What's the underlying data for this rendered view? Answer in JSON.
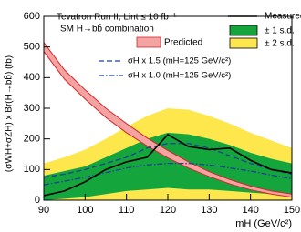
{
  "chart_data": {
    "type": "line",
    "title": "Tevatron Run II, Lint ≤ 10 fb⁻¹",
    "subtitle": "SM H→bb̄ combination",
    "xlabel": "mH (GeV/c²)",
    "ylabel": "(σWH+σZH) x Br(H→bb̄) (fb)",
    "x": [
      90,
      95,
      100,
      105,
      110,
      115,
      120,
      125,
      130,
      135,
      140,
      145,
      150
    ],
    "xlim": [
      90,
      150
    ],
    "ylim": [
      0,
      600
    ],
    "xticks": [
      90,
      100,
      110,
      120,
      130,
      140,
      150
    ],
    "yticks": [
      0,
      100,
      200,
      300,
      400,
      500,
      600
    ],
    "series": [
      {
        "name": "± 2 s.d.",
        "kind": "band",
        "color": "#fde74c",
        "low": [
          0,
          0,
          0,
          0,
          0,
          0,
          0,
          0,
          0,
          0,
          0,
          0,
          0
        ],
        "high": [
          120,
          140,
          165,
          200,
          240,
          275,
          300,
          295,
          275,
          250,
          220,
          195,
          170
        ]
      },
      {
        "name": "± 1 s.d.",
        "kind": "band",
        "color": "#14a53c",
        "low": [
          0,
          5,
          10,
          20,
          30,
          35,
          40,
          35,
          35,
          30,
          25,
          20,
          20
        ],
        "high": [
          80,
          95,
          110,
          140,
          170,
          200,
          220,
          215,
          200,
          180,
          155,
          135,
          120
        ]
      },
      {
        "name": "Predicted",
        "kind": "band",
        "color": "#f4a3a3",
        "edge": "#d62728",
        "low": [
          485,
          395,
          330,
          270,
          220,
          177,
          138,
          105,
          77,
          53,
          34,
          20,
          10
        ],
        "high": [
          515,
          425,
          360,
          300,
          250,
          203,
          162,
          125,
          93,
          67,
          46,
          30,
          20
        ]
      },
      {
        "name": "σH x 1.5 (mH=125 GeV/c²)",
        "kind": "line",
        "color": "#1f3f99",
        "dash": "6,3",
        "values": [
          75,
          85,
          100,
          120,
          140,
          170,
          185,
          185,
          170,
          145,
          120,
          100,
          85
        ]
      },
      {
        "name": "σH x 1.0 (mH=125 GeV/c²)",
        "kind": "line",
        "color": "#1f3f99",
        "dash": "6,2,1.5,2",
        "values": [
          50,
          62,
          75,
          90,
          105,
          115,
          120,
          120,
          115,
          105,
          95,
          82,
          70
        ]
      },
      {
        "name": "Measured",
        "kind": "line",
        "color": "#000000",
        "values": [
          15,
          30,
          60,
          100,
          125,
          140,
          214,
          175,
          165,
          170,
          130,
          100,
          89
        ]
      }
    ]
  }
}
